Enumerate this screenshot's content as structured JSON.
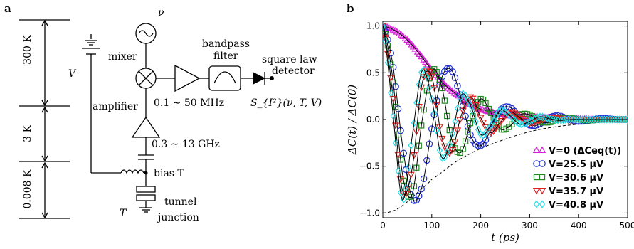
{
  "panel_a": {
    "label": "a",
    "temperature_stages": [
      "300 K",
      "3 K",
      "0.008 K"
    ],
    "labels": {
      "nu": "ν",
      "mixer": "mixer",
      "V": "V",
      "bandpass_1": "bandpass",
      "bandpass_2": "filter",
      "square_law_1": "square law",
      "square_law_2": "detector",
      "amplifier": "amplifier",
      "freq_mhz": "0.1 ∼ 50 MHz",
      "output_signal": "S_{I²}(ν, T, V)",
      "freq_ghz": "0.3 ∼ 13 GHz",
      "bias_t": "bias T",
      "tunnel_1": "tunnel",
      "tunnel_2": "junction",
      "T": "T"
    }
  },
  "panel_b": {
    "label": "b"
  },
  "colors": {
    "magenta": "#d81fd8",
    "blue": "#1f2fd0",
    "green": "#1f8a1f",
    "red": "#e01f1f",
    "cyan": "#1fe0e8"
  },
  "chart_data": {
    "type": "line",
    "xlabel": "t (ps)",
    "ylabel": "ΔC(t) / ΔC(0)",
    "xlim": [
      0,
      500
    ],
    "ylim": [
      -1.05,
      1.05
    ],
    "xticks": [
      0,
      100,
      200,
      300,
      400,
      500
    ],
    "yticks": [
      -1.0,
      -0.5,
      0.0,
      0.5,
      1.0
    ],
    "ytick_labels": [
      "−1.0",
      "−0.5",
      "0.0",
      "0.5",
      "1.0"
    ],
    "legend_position": "lower right",
    "envelope": {
      "style": "dashed",
      "x": [
        0,
        25,
        50,
        75,
        100,
        150,
        200,
        250,
        300,
        350,
        400,
        450,
        500
      ],
      "y": [
        -1.0,
        -0.97,
        -0.88,
        -0.76,
        -0.64,
        -0.45,
        -0.31,
        -0.21,
        -0.13,
        -0.08,
        -0.05,
        -0.03,
        -0.02
      ]
    },
    "series": [
      {
        "name": "V=0 (ΔCeq(t))",
        "marker": "triangle-up",
        "color": "#d81fd8",
        "x": [
          0,
          25,
          50,
          75,
          100,
          125,
          150,
          175,
          200,
          250,
          300,
          350,
          400,
          450,
          500
        ],
        "y": [
          1.0,
          0.95,
          0.85,
          0.7,
          0.53,
          0.38,
          0.27,
          0.18,
          0.11,
          0.05,
          0.03,
          0.02,
          0.01,
          0.0,
          0.0
        ]
      },
      {
        "name": "V=25.5 μV",
        "marker": "circle",
        "color": "#1f2fd0",
        "x": [
          0,
          20,
          40,
          60,
          80,
          100,
          120,
          140,
          160,
          180,
          200,
          220,
          240,
          260,
          280,
          300,
          320,
          340,
          360,
          380,
          400,
          420,
          440,
          460,
          480,
          500
        ],
        "y": [
          1.0,
          0.6,
          -0.27,
          -0.84,
          -0.72,
          -0.1,
          0.44,
          0.53,
          0.22,
          -0.18,
          -0.28,
          -0.12,
          0.1,
          0.13,
          0.02,
          -0.06,
          -0.05,
          0.02,
          0.04,
          0.0,
          -0.02,
          -0.01,
          0.01,
          0.01,
          0.0,
          0.0
        ]
      },
      {
        "name": "V=30.6 μV",
        "marker": "square",
        "color": "#1f8a1f",
        "x": [
          0,
          20,
          40,
          60,
          80,
          100,
          120,
          140,
          160,
          180,
          200,
          220,
          240,
          260,
          280,
          300,
          320,
          340,
          360,
          380,
          400,
          420,
          440,
          460,
          480,
          500
        ],
        "y": [
          1.0,
          0.45,
          -0.58,
          -0.8,
          -0.02,
          0.52,
          0.36,
          -0.2,
          -0.35,
          -0.02,
          0.22,
          0.08,
          -0.1,
          -0.07,
          0.05,
          0.05,
          -0.02,
          -0.03,
          0.01,
          0.02,
          0.0,
          -0.01,
          0.0,
          0.0,
          0.0,
          0.0
        ]
      },
      {
        "name": "V=35.7 μV",
        "marker": "triangle-down",
        "color": "#e01f1f",
        "x": [
          0,
          20,
          40,
          60,
          80,
          100,
          120,
          140,
          160,
          180,
          200,
          220,
          240,
          260,
          280,
          300,
          320,
          340,
          360,
          380,
          400,
          420,
          440,
          460,
          480,
          500
        ],
        "y": [
          1.0,
          0.28,
          -0.76,
          -0.52,
          0.38,
          0.46,
          -0.18,
          -0.35,
          0.04,
          0.24,
          0.02,
          -0.14,
          -0.03,
          0.08,
          0.02,
          -0.04,
          -0.01,
          0.02,
          0.01,
          -0.01,
          0.0,
          0.0,
          0.0,
          0.0,
          0.0,
          0.0
        ]
      },
      {
        "name": "V=40.8 μV",
        "marker": "diamond",
        "color": "#1fe0e8",
        "x": [
          0,
          20,
          40,
          60,
          80,
          100,
          120,
          140,
          160,
          180,
          200,
          220,
          240,
          260,
          280,
          300,
          320,
          340,
          360,
          380,
          400,
          420,
          440,
          460,
          480,
          500
        ],
        "y": [
          1.0,
          0.1,
          -0.86,
          -0.18,
          0.52,
          0.22,
          -0.4,
          -0.2,
          0.26,
          0.14,
          -0.16,
          -0.07,
          0.1,
          0.04,
          -0.05,
          -0.02,
          0.03,
          0.01,
          -0.01,
          0.0,
          0.0,
          0.0,
          0.0,
          0.0,
          0.0,
          0.0
        ]
      }
    ]
  }
}
